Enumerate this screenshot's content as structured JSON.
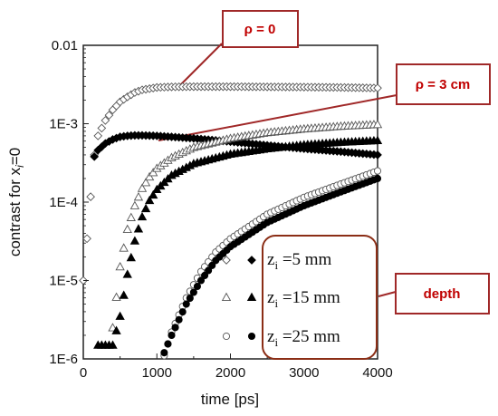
{
  "chart_data": {
    "type": "scatter",
    "xlabel": "time  [ps]",
    "ylabel": "contrast for x_i=0",
    "ylabel_main": "contrast for x",
    "ylabel_sub": "i",
    "ylabel_tail": "=0",
    "xlim": [
      0,
      4000
    ],
    "ylim": [
      1e-06,
      0.01
    ],
    "yscale": "log",
    "grid": false,
    "x_ticks": [
      "0",
      "1000",
      "2000",
      "3000",
      "4000"
    ],
    "y_ticks": [
      "1E-6",
      "1E-5",
      "1E-4",
      "1E-3",
      "0.01"
    ],
    "callouts": {
      "rho0": "ρ = 0",
      "rho3": "ρ = 3 cm",
      "depth": "depth"
    },
    "legend": [
      {
        "label_z": "z",
        "label_sub": "i",
        "label_rest": " =5 mm"
      },
      {
        "label_z": "z",
        "label_sub": "i",
        "label_rest": " =15 mm"
      },
      {
        "label_z": "z",
        "label_sub": "i",
        "label_rest": " =25 mm"
      }
    ],
    "series": [
      {
        "depth_mm": 5,
        "rho_cm": 0,
        "marker": "diamond",
        "filled": false,
        "points": [
          [
            0,
            1e-05
          ],
          [
            150,
            0.0004
          ],
          [
            200,
            0.0007
          ],
          [
            300,
            0.0011
          ],
          [
            400,
            0.0015
          ],
          [
            500,
            0.0019
          ],
          [
            600,
            0.0022
          ],
          [
            700,
            0.0025
          ],
          [
            800,
            0.0027
          ],
          [
            900,
            0.0028
          ],
          [
            1000,
            0.0029
          ],
          [
            1200,
            0.00295
          ],
          [
            1500,
            0.00297
          ],
          [
            2000,
            0.00297
          ],
          [
            2500,
            0.00295
          ],
          [
            3000,
            0.00293
          ],
          [
            3500,
            0.0029
          ],
          [
            4000,
            0.00285
          ]
        ]
      },
      {
        "depth_mm": 5,
        "rho_cm": 3,
        "marker": "diamond",
        "filled": true,
        "points": [
          [
            150,
            0.00038
          ],
          [
            200,
            0.00046
          ],
          [
            300,
            0.00056
          ],
          [
            400,
            0.00063
          ],
          [
            500,
            0.00068
          ],
          [
            600,
            0.0007
          ],
          [
            700,
            0.00071
          ],
          [
            800,
            0.00071
          ],
          [
            1000,
            0.0007
          ],
          [
            1500,
            0.00065
          ],
          [
            2000,
            0.00059
          ],
          [
            2500,
            0.00053
          ],
          [
            3000,
            0.00048
          ],
          [
            3500,
            0.00044
          ],
          [
            4000,
            0.0004
          ]
        ]
      },
      {
        "depth_mm": 15,
        "rho_cm": 0,
        "marker": "triangle",
        "filled": false,
        "points": [
          [
            400,
            2.5e-06
          ],
          [
            500,
            1.5e-05
          ],
          [
            600,
            4.5e-05
          ],
          [
            700,
            9e-05
          ],
          [
            800,
            0.00015
          ],
          [
            900,
            0.00021
          ],
          [
            1000,
            0.00027
          ],
          [
            1200,
            0.00037
          ],
          [
            1500,
            0.0005
          ],
          [
            2000,
            0.00065
          ],
          [
            2500,
            0.00077
          ],
          [
            3000,
            0.00086
          ],
          [
            3500,
            0.00093
          ],
          [
            4000,
            0.00098
          ]
        ]
      },
      {
        "depth_mm": 15,
        "rho_cm": 3,
        "marker": "triangle",
        "filled": true,
        "points": [
          [
            200,
            1.5e-06
          ],
          [
            400,
            1.5e-06
          ],
          [
            500,
            3.5e-06
          ],
          [
            600,
            1.2e-05
          ],
          [
            700,
            3.2e-05
          ],
          [
            800,
            6.5e-05
          ],
          [
            900,
            0.000105
          ],
          [
            1000,
            0.000145
          ],
          [
            1200,
            0.00022
          ],
          [
            1500,
            0.00031
          ],
          [
            2000,
            0.00041
          ],
          [
            2500,
            0.00048
          ],
          [
            3000,
            0.00054
          ],
          [
            3500,
            0.00058
          ],
          [
            4000,
            0.00061
          ]
        ]
      },
      {
        "depth_mm": 25,
        "rho_cm": 0,
        "marker": "circle",
        "filled": false,
        "points": [
          [
            1100,
            1.1e-06
          ],
          [
            1200,
            2.2e-06
          ],
          [
            1400,
            6e-06
          ],
          [
            1600,
            1.3e-05
          ],
          [
            1800,
            2.3e-05
          ],
          [
            2000,
            3.4e-05
          ],
          [
            2500,
            7e-05
          ],
          [
            3000,
            0.000115
          ],
          [
            3500,
            0.00017
          ],
          [
            4000,
            0.00025
          ]
        ]
      },
      {
        "depth_mm": 25,
        "rho_cm": 3,
        "marker": "circle",
        "filled": true,
        "points": [
          [
            1100,
            1.2e-06
          ],
          [
            1200,
            2e-06
          ],
          [
            1400,
            5e-06
          ],
          [
            1600,
            1e-05
          ],
          [
            1800,
            1.8e-05
          ],
          [
            2000,
            2.7e-05
          ],
          [
            2500,
            5.5e-05
          ],
          [
            3000,
            9e-05
          ],
          [
            3500,
            0.000135
          ],
          [
            4000,
            0.0002
          ]
        ]
      }
    ]
  }
}
